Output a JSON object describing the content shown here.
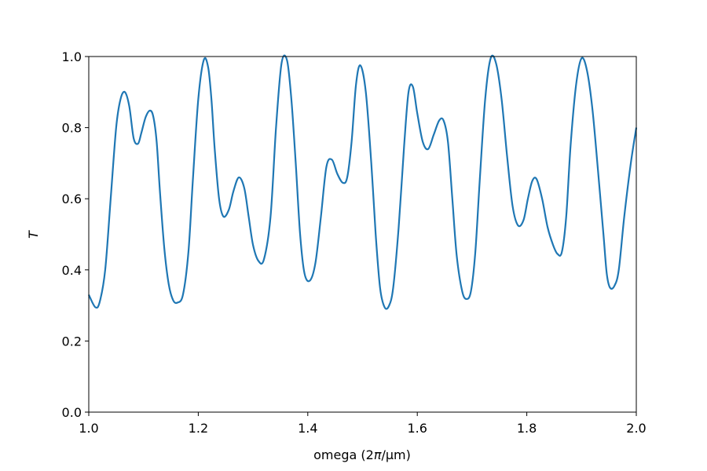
{
  "chart_data": {
    "type": "line",
    "title": "",
    "xlabel_text": "omega (2",
    "xlabel_pi": "π",
    "xlabel_unit": "/μm)",
    "ylabel": "T",
    "xlim": [
      1.0,
      2.0
    ],
    "ylim": [
      0.0,
      1.0
    ],
    "grid": false,
    "legend": "none",
    "line_color": "#1f77b4",
    "x_ticks": [
      1.0,
      1.2,
      1.4,
      1.6,
      1.8,
      2.0
    ],
    "x_tick_labels": [
      "1.0",
      "1.2",
      "1.4",
      "1.6",
      "1.8",
      "2.0"
    ],
    "y_ticks": [
      0.0,
      0.2,
      0.4,
      0.6,
      0.8,
      1.0
    ],
    "y_tick_labels": [
      "0.0",
      "0.2",
      "0.4",
      "0.6",
      "0.8",
      "1.0"
    ],
    "series": [
      {
        "x": [
          1.0,
          1.012,
          1.02,
          1.03,
          1.04,
          1.05,
          1.058,
          1.066,
          1.074,
          1.082,
          1.09,
          1.096,
          1.104,
          1.112,
          1.118,
          1.124,
          1.13,
          1.138,
          1.146,
          1.154,
          1.162,
          1.172,
          1.182,
          1.19,
          1.2,
          1.21,
          1.218,
          1.224,
          1.23,
          1.238,
          1.246,
          1.256,
          1.264,
          1.274,
          1.284,
          1.292,
          1.3,
          1.31,
          1.32,
          1.332,
          1.342,
          1.352,
          1.362,
          1.37,
          1.378,
          1.386,
          1.394,
          1.404,
          1.414,
          1.424,
          1.434,
          1.444,
          1.454,
          1.464,
          1.472,
          1.48,
          1.488,
          1.496,
          1.506,
          1.516,
          1.524,
          1.532,
          1.54,
          1.548,
          1.556,
          1.566,
          1.576,
          1.584,
          1.592,
          1.6,
          1.61,
          1.62,
          1.63,
          1.64,
          1.648,
          1.656,
          1.664,
          1.672,
          1.682,
          1.69,
          1.698,
          1.706,
          1.714,
          1.724,
          1.734,
          1.744,
          1.754,
          1.764,
          1.774,
          1.784,
          1.794,
          1.802,
          1.81,
          1.818,
          1.828,
          1.838,
          1.848,
          1.856,
          1.864,
          1.872,
          1.88,
          1.89,
          1.9,
          1.91,
          1.92,
          1.93,
          1.94,
          1.946,
          1.952,
          1.96,
          1.968,
          1.978,
          1.99,
          2.0
        ],
        "y": [
          0.33,
          0.295,
          0.31,
          0.4,
          0.6,
          0.8,
          0.88,
          0.9,
          0.86,
          0.77,
          0.755,
          0.785,
          0.83,
          0.848,
          0.83,
          0.76,
          0.62,
          0.46,
          0.36,
          0.315,
          0.308,
          0.33,
          0.45,
          0.65,
          0.88,
          0.99,
          0.97,
          0.88,
          0.74,
          0.6,
          0.55,
          0.57,
          0.62,
          0.66,
          0.63,
          0.55,
          0.47,
          0.425,
          0.43,
          0.55,
          0.8,
          0.98,
          0.99,
          0.88,
          0.7,
          0.5,
          0.39,
          0.37,
          0.42,
          0.55,
          0.69,
          0.71,
          0.67,
          0.645,
          0.66,
          0.76,
          0.92,
          0.975,
          0.9,
          0.7,
          0.5,
          0.35,
          0.296,
          0.298,
          0.35,
          0.52,
          0.75,
          0.9,
          0.915,
          0.84,
          0.76,
          0.74,
          0.78,
          0.82,
          0.82,
          0.76,
          0.6,
          0.44,
          0.34,
          0.318,
          0.34,
          0.45,
          0.65,
          0.88,
          0.995,
          0.98,
          0.88,
          0.72,
          0.58,
          0.525,
          0.54,
          0.6,
          0.65,
          0.655,
          0.6,
          0.52,
          0.47,
          0.445,
          0.45,
          0.55,
          0.75,
          0.92,
          0.995,
          0.96,
          0.85,
          0.68,
          0.5,
          0.39,
          0.35,
          0.355,
          0.4,
          0.55,
          0.7,
          0.8
        ],
        "color": "#1f77b4"
      }
    ]
  }
}
